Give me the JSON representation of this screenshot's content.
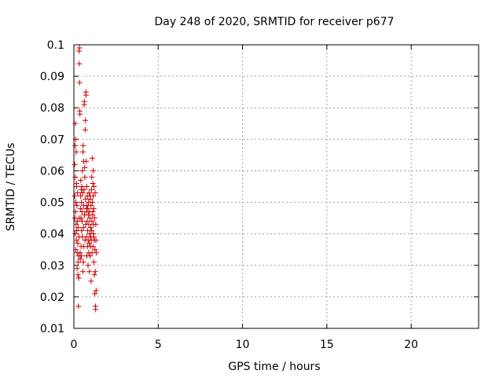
{
  "chart_data": {
    "type": "scatter",
    "title": "Day 248 of 2020, SRMTID for receiver p677",
    "xlabel": "GPS time / hours",
    "ylabel": "SRMTID / TECUs",
    "xlim": [
      0,
      24
    ],
    "ylim": [
      0.01,
      0.1
    ],
    "xticks": [
      0,
      5,
      10,
      15,
      20
    ],
    "xtick_labels": [
      "0",
      "5",
      "10",
      "15",
      "20"
    ],
    "yticks": [
      0.01,
      0.02,
      0.03,
      0.04,
      0.05,
      0.06,
      0.07,
      0.08,
      0.09,
      0.1
    ],
    "ytick_labels": [
      "0.01",
      "0.02",
      "0.03",
      "0.04",
      "0.05",
      "0.06",
      "0.07",
      "0.08",
      "0.09",
      "0.1"
    ],
    "grid": true,
    "marker": "+",
    "color": "#cc0000",
    "series": [
      {
        "name": "p677",
        "points": [
          [
            0.05,
            0.062
          ],
          [
            0.05,
            0.052
          ],
          [
            0.06,
            0.045
          ],
          [
            0.07,
            0.068
          ],
          [
            0.08,
            0.075
          ],
          [
            0.08,
            0.04
          ],
          [
            0.09,
            0.058
          ],
          [
            0.1,
            0.047
          ],
          [
            0.1,
            0.07
          ],
          [
            0.11,
            0.035
          ],
          [
            0.12,
            0.05
          ],
          [
            0.13,
            0.043
          ],
          [
            0.14,
            0.066
          ],
          [
            0.15,
            0.038
          ],
          [
            0.16,
            0.055
          ],
          [
            0.17,
            0.041
          ],
          [
            0.18,
            0.049
          ],
          [
            0.19,
            0.029
          ],
          [
            0.2,
            0.044
          ],
          [
            0.2,
            0.034
          ],
          [
            0.22,
            0.053
          ],
          [
            0.23,
            0.037
          ],
          [
            0.24,
            0.027
          ],
          [
            0.25,
            0.031
          ],
          [
            0.26,
            0.042
          ],
          [
            0.27,
            0.017
          ],
          [
            0.28,
            0.033
          ],
          [
            0.29,
            0.026
          ],
          [
            0.3,
            0.039
          ],
          [
            0.31,
            0.098
          ],
          [
            0.32,
            0.094
          ],
          [
            0.33,
            0.099
          ],
          [
            0.34,
            0.088
          ],
          [
            0.35,
            0.079
          ],
          [
            0.36,
            0.078
          ],
          [
            0.37,
            0.034
          ],
          [
            0.38,
            0.032
          ],
          [
            0.39,
            0.048
          ],
          [
            0.4,
            0.052
          ],
          [
            0.41,
            0.057
          ],
          [
            0.42,
            0.045
          ],
          [
            0.43,
            0.036
          ],
          [
            0.44,
            0.033
          ],
          [
            0.45,
            0.05
          ],
          [
            0.46,
            0.041
          ],
          [
            0.47,
            0.055
          ],
          [
            0.48,
            0.047
          ],
          [
            0.49,
            0.044
          ],
          [
            0.5,
            0.06
          ],
          [
            0.51,
            0.039
          ],
          [
            0.52,
            0.053
          ],
          [
            0.53,
            0.028
          ],
          [
            0.54,
            0.066
          ],
          [
            0.55,
            0.068
          ],
          [
            0.56,
            0.031
          ],
          [
            0.57,
            0.042
          ],
          [
            0.58,
            0.049
          ],
          [
            0.59,
            0.036
          ],
          [
            0.6,
            0.054
          ],
          [
            0.61,
            0.081
          ],
          [
            0.62,
            0.082
          ],
          [
            0.63,
            0.046
          ],
          [
            0.64,
            0.061
          ],
          [
            0.65,
            0.058
          ],
          [
            0.66,
            0.038
          ],
          [
            0.67,
            0.073
          ],
          [
            0.68,
            0.076
          ],
          [
            0.69,
            0.051
          ],
          [
            0.7,
            0.043
          ],
          [
            0.71,
            0.085
          ],
          [
            0.72,
            0.084
          ],
          [
            0.73,
            0.063
          ],
          [
            0.74,
            0.047
          ],
          [
            0.75,
            0.039
          ],
          [
            0.76,
            0.055
          ],
          [
            0.77,
            0.033
          ],
          [
            0.78,
            0.049
          ],
          [
            0.79,
            0.044
          ],
          [
            0.8,
            0.052
          ],
          [
            0.81,
            0.036
          ],
          [
            0.82,
            0.041
          ],
          [
            0.83,
            0.048
          ],
          [
            0.84,
            0.03
          ],
          [
            0.85,
            0.038
          ],
          [
            0.86,
            0.046
          ],
          [
            0.87,
            0.05
          ],
          [
            0.88,
            0.034
          ],
          [
            0.89,
            0.043
          ],
          [
            0.9,
            0.053
          ],
          [
            0.91,
            0.037
          ],
          [
            0.92,
            0.028
          ],
          [
            0.93,
            0.047
          ],
          [
            0.94,
            0.04
          ],
          [
            0.95,
            0.045
          ],
          [
            0.96,
            0.033
          ],
          [
            0.97,
            0.051
          ],
          [
            0.98,
            0.039
          ],
          [
            0.99,
            0.036
          ],
          [
            1.0,
            0.042
          ],
          [
            1.01,
            0.049
          ],
          [
            1.02,
            0.025
          ],
          [
            1.03,
            0.038
          ],
          [
            1.04,
            0.054
          ],
          [
            1.05,
            0.041
          ],
          [
            1.06,
            0.058
          ],
          [
            1.07,
            0.044
          ],
          [
            1.08,
            0.034
          ],
          [
            1.09,
            0.064
          ],
          [
            1.1,
            0.05
          ],
          [
            1.11,
            0.046
          ],
          [
            1.12,
            0.056
          ],
          [
            1.13,
            0.036
          ],
          [
            1.14,
            0.052
          ],
          [
            1.15,
            0.06
          ],
          [
            1.16,
            0.04
          ],
          [
            1.17,
            0.043
          ],
          [
            1.18,
            0.048
          ],
          [
            1.19,
            0.031
          ],
          [
            1.2,
            0.055
          ],
          [
            1.21,
            0.038
          ],
          [
            1.22,
            0.027
          ],
          [
            1.23,
            0.045
          ],
          [
            1.24,
            0.021
          ],
          [
            1.25,
            0.035
          ],
          [
            1.26,
            0.053
          ],
          [
            1.27,
            0.028
          ],
          [
            1.28,
            0.017
          ],
          [
            1.29,
            0.016
          ],
          [
            1.3,
            0.043
          ],
          [
            1.31,
            0.038
          ],
          [
            1.32,
            0.022
          ],
          [
            1.33,
            0.034
          ],
          [
            0.15,
            0.056
          ],
          [
            0.32,
            0.045
          ],
          [
            0.58,
            0.063
          ],
          [
            0.74,
            0.048
          ],
          [
            0.95,
            0.052
          ],
          [
            1.12,
            0.047
          ],
          [
            1.18,
            0.039
          ],
          [
            0.44,
            0.054
          ]
        ]
      }
    ]
  }
}
